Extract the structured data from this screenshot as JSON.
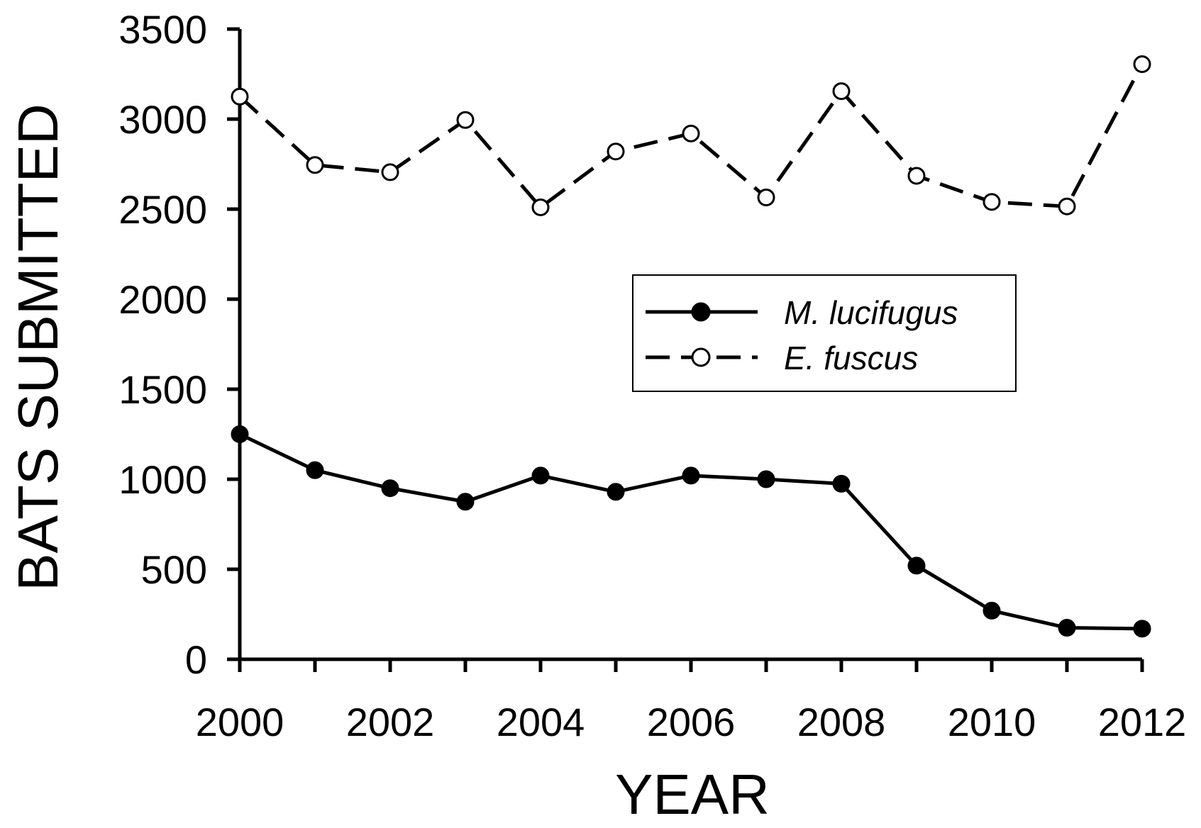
{
  "chart_data": {
    "type": "line",
    "title": "",
    "xlabel": "YEAR",
    "ylabel": "BATS SUBMITTED",
    "xlim": [
      2000,
      2012
    ],
    "ylim": [
      0,
      3500
    ],
    "xticks": [
      2000,
      2002,
      2004,
      2006,
      2008,
      2010,
      2012
    ],
    "xtick_labels": [
      "2000",
      "2002",
      "2004",
      "2006",
      "2008",
      "2010",
      "2012"
    ],
    "yticks": [
      0,
      500,
      1000,
      1500,
      2000,
      2500,
      3000,
      3500
    ],
    "ytick_labels": [
      "0",
      "500",
      "1000",
      "1500",
      "2000",
      "2500",
      "3000",
      "3500"
    ],
    "grid": false,
    "legend_position": "center-right",
    "x": [
      2000,
      2001,
      2002,
      2003,
      2004,
      2005,
      2006,
      2007,
      2008,
      2009,
      2010,
      2011,
      2012
    ],
    "series": [
      {
        "name": "M. lucifugus",
        "style": "solid",
        "marker": "filled-circle",
        "color": "#000000",
        "values": [
          1250,
          1050,
          950,
          875,
          1020,
          930,
          1020,
          1000,
          975,
          520,
          270,
          175,
          170
        ]
      },
      {
        "name": "E. fuscus",
        "style": "dashed",
        "marker": "open-circle",
        "color": "#000000",
        "values": [
          3125,
          2745,
          2705,
          2995,
          2510,
          2820,
          2920,
          2565,
          3155,
          2685,
          2540,
          2515,
          3305
        ]
      }
    ]
  }
}
